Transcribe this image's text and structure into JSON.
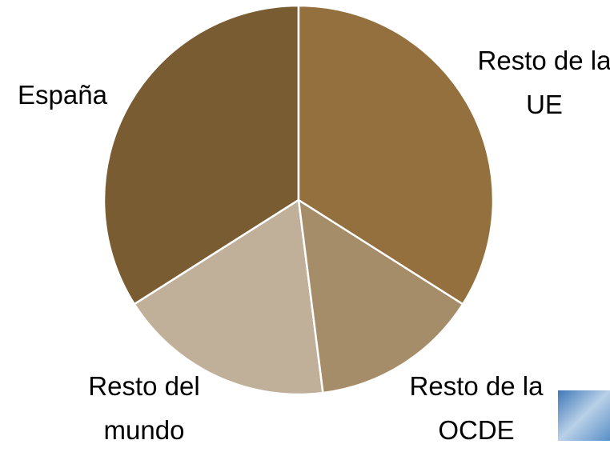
{
  "chart_data": {
    "type": "pie",
    "categories": [
      "Resto de la UE",
      "Resto de la OCDE",
      "Resto del mundo",
      "España"
    ],
    "values": [
      34,
      14,
      18,
      34
    ],
    "colors": [
      "#94703f",
      "#a58d6a",
      "#c0b09a",
      "#7a5c33"
    ]
  }
}
